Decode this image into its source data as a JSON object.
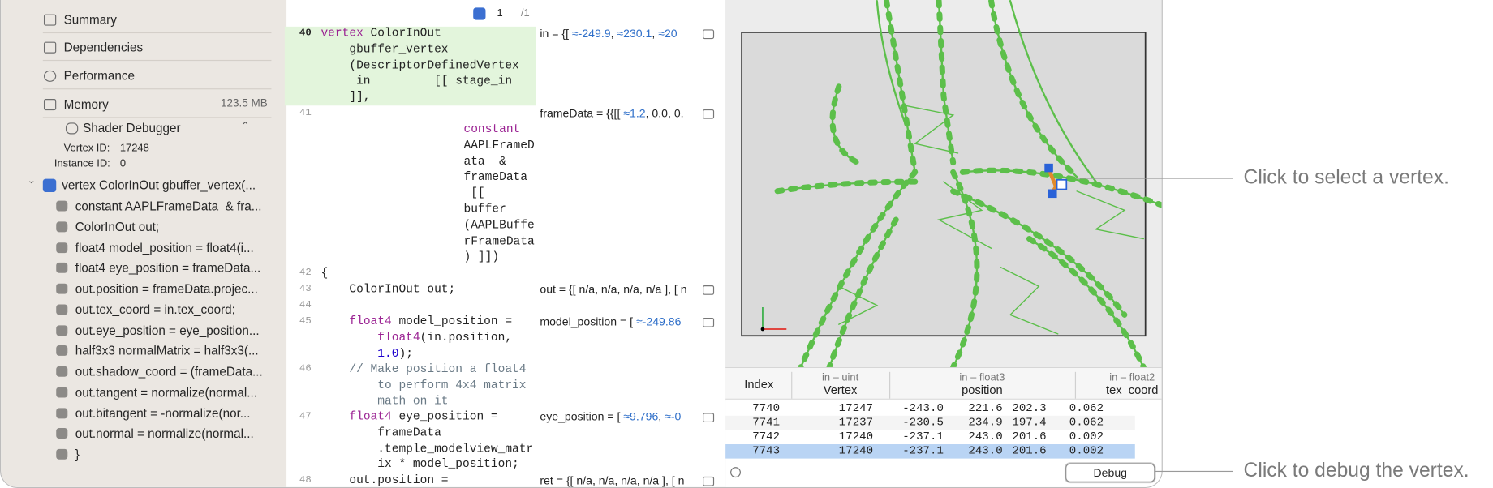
{
  "sidebar": {
    "items": [
      {
        "label": "Summary"
      },
      {
        "label": "Dependencies"
      },
      {
        "label": "Performance"
      },
      {
        "label": "Memory",
        "value": "123.5 MB"
      }
    ],
    "shader_debugger": {
      "title": "Shader Debugger",
      "vertex_id_label": "Vertex ID:",
      "vertex_id": "17248",
      "instance_id_label": "Instance ID:",
      "instance_id": "0"
    },
    "function": "vertex ColorInOut gbuffer_vertex(...",
    "statements": [
      "constant AAPLFrameData  & fra...",
      "ColorInOut out;",
      "float4 model_position = float4(i...",
      "float4 eye_position = frameData...",
      "out.position = frameData.projec...",
      "out.tex_coord = in.tex_coord;",
      "out.eye_position = eye_position...",
      "half3x3 normalMatrix = half3x3(...",
      "out.shadow_coord = (frameData...",
      "out.tangent = normalize(normal...",
      "out.bitangent = -normalize(nor...",
      "out.normal = normalize(normal...",
      "}"
    ]
  },
  "code": {
    "nav": "1",
    "nav_total": "/1",
    "lines": [
      {
        "number": "40",
        "text": [
          "vertex ColorInOut",
          "    gbuffer_vertex",
          "    (DescriptorDefinedVertex",
          "     in         [[ stage_in",
          "    ]],"
        ],
        "value": "in = {[ ≈-249.9, ≈230.1, ≈20"
      },
      {
        "number": "41",
        "text": [
          "constant",
          "AAPLFrameD",
          "ata  &",
          "frameData",
          " [[",
          "buffer",
          "(AAPLBuffe",
          "rFrameData",
          ") ]])"
        ],
        "value": "frameData = {{[[ ≈1.2, 0.0, 0."
      },
      {
        "number": "42",
        "text": [
          "{"
        ]
      },
      {
        "number": "43",
        "text": [
          "    ColorInOut out;"
        ],
        "value": "out = {[ n/a, n/a, n/a, n/a ], [ n"
      },
      {
        "number": "44"
      },
      {
        "number": "45",
        "text": [
          "    float4 model_position =",
          "        float4(in.position,",
          "        1.0);"
        ],
        "value": "model_position = [ ≈-249.86"
      },
      {
        "number": "46",
        "text": [
          "    // Make position a float4",
          "        to perform 4x4 matrix",
          "        math on it"
        ]
      },
      {
        "number": "47",
        "text": [
          "    float4 eye_position =",
          "        frameData",
          "        .temple_modelview_matr",
          "        ix * model_position;"
        ],
        "value": "eye_position = [ ≈9.796, ≈-0"
      },
      {
        "number": "48",
        "text": [
          "    out.position ="
        ],
        "value": "ret = {[ n/a, n/a, n/a, n/a ], [ n"
      }
    ]
  },
  "table": {
    "headers": [
      {
        "name": "Index"
      },
      {
        "type": "in – uint",
        "name": "Vertex"
      },
      {
        "type": "in – float3",
        "name": "position"
      },
      {
        "type": "in – float2",
        "name": "tex_coord"
      }
    ],
    "rows": [
      [
        "7740",
        "17247",
        "-243.0",
        "221.6",
        "202.3",
        "0.062"
      ],
      [
        "7741",
        "17237",
        "-230.5",
        "234.9",
        "197.4",
        "0.062"
      ],
      [
        "7742",
        "17240",
        "-237.1",
        "243.0",
        "201.6",
        "0.002"
      ],
      [
        "7743",
        "17240",
        "-237.1",
        "243.0",
        "201.6",
        "0.002"
      ]
    ],
    "selected_row": 3
  },
  "debug_button": "Debug",
  "callouts": [
    "Click to select a vertex.",
    "Click to debug the vertex."
  ]
}
